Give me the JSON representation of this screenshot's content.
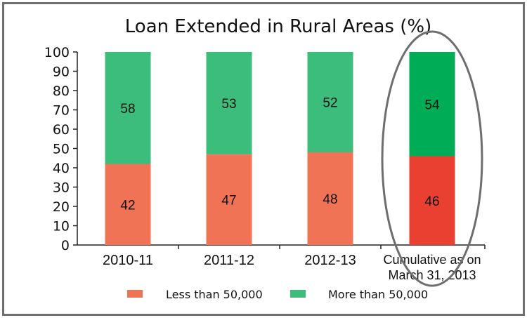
{
  "chart_data": {
    "type": "bar",
    "stacked": true,
    "title": "Loan Extended in Rural Areas (%)",
    "xlabel": "",
    "ylabel": "",
    "ylim": [
      0,
      100
    ],
    "yticks": [
      0,
      10,
      20,
      30,
      40,
      50,
      60,
      70,
      80,
      90,
      100
    ],
    "categories": [
      [
        "2010-11"
      ],
      [
        "2011-12"
      ],
      [
        "2012-13"
      ],
      [
        "Cumulative as on",
        "March 31, 2013"
      ]
    ],
    "series": [
      {
        "name": "Less than 50,000",
        "values": [
          42,
          47,
          48,
          46
        ],
        "color": "#f07355",
        "highlight_color": "#ea4032"
      },
      {
        "name": "More than 50,000",
        "values": [
          58,
          53,
          52,
          54
        ],
        "color": "#3dbd7c",
        "highlight_color": "#00ac55"
      }
    ],
    "highlighted_category_index": 3,
    "legend_position": "bottom",
    "grid": false
  }
}
